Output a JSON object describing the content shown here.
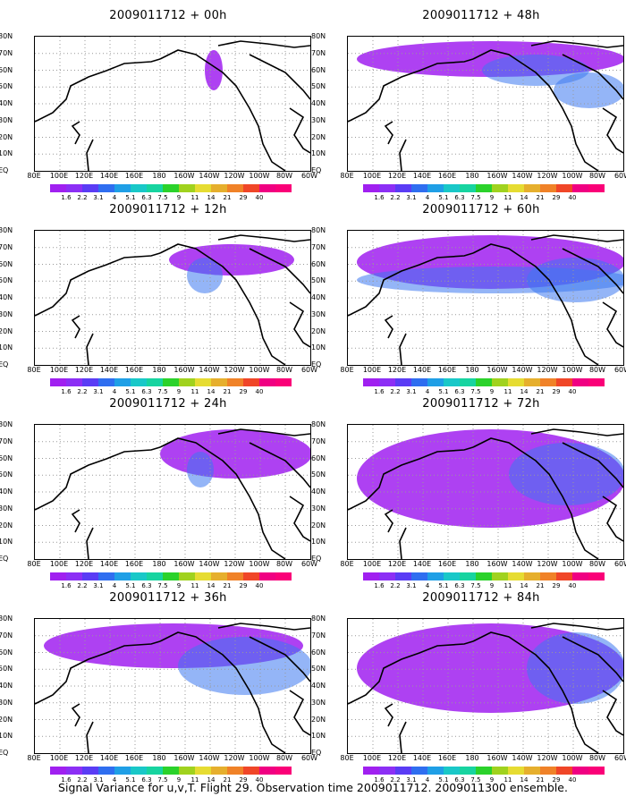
{
  "panels": [
    {
      "title": "2009011712 + 00h",
      "col": 0,
      "row": 0
    },
    {
      "title": "2009011712 + 48h",
      "col": 1,
      "row": 0
    },
    {
      "title": "2009011712 + 12h",
      "col": 0,
      "row": 1
    },
    {
      "title": "2009011712 + 60h",
      "col": 1,
      "row": 1
    },
    {
      "title": "2009011712 + 24h",
      "col": 0,
      "row": 2
    },
    {
      "title": "2009011712 + 72h",
      "col": 1,
      "row": 2
    },
    {
      "title": "2009011712 + 36h",
      "col": 0,
      "row": 3
    },
    {
      "title": "2009011712 + 84h",
      "col": 1,
      "row": 3
    }
  ],
  "lat_labels": [
    "80N",
    "70N",
    "60N",
    "50N",
    "40N",
    "30N",
    "20N",
    "10N",
    "EQ"
  ],
  "lon_labels": [
    "80E",
    "100E",
    "120E",
    "140E",
    "160E",
    "180",
    "160W",
    "140W",
    "120W",
    "100W",
    "80W",
    "60W"
  ],
  "colorbar": {
    "colors": [
      "#a020f0",
      "#8c2ff5",
      "#5a3cf5",
      "#2f6ef0",
      "#1f9fe6",
      "#19c8c8",
      "#17d4a0",
      "#2bd22b",
      "#a0d21e",
      "#e6dc32",
      "#e6af2d",
      "#f08228",
      "#f04628",
      "#f00082",
      "#fa0078"
    ],
    "labels": [
      "1.6",
      "2.2",
      "3.1",
      "4",
      "5.1",
      "6.3",
      "7.5",
      "9",
      "11",
      "14",
      "21",
      "29",
      "40"
    ]
  },
  "caption": "Signal Variance for u,v,T. Flight 29. Observation time 2009011712. 2009011300 ensemble."
}
